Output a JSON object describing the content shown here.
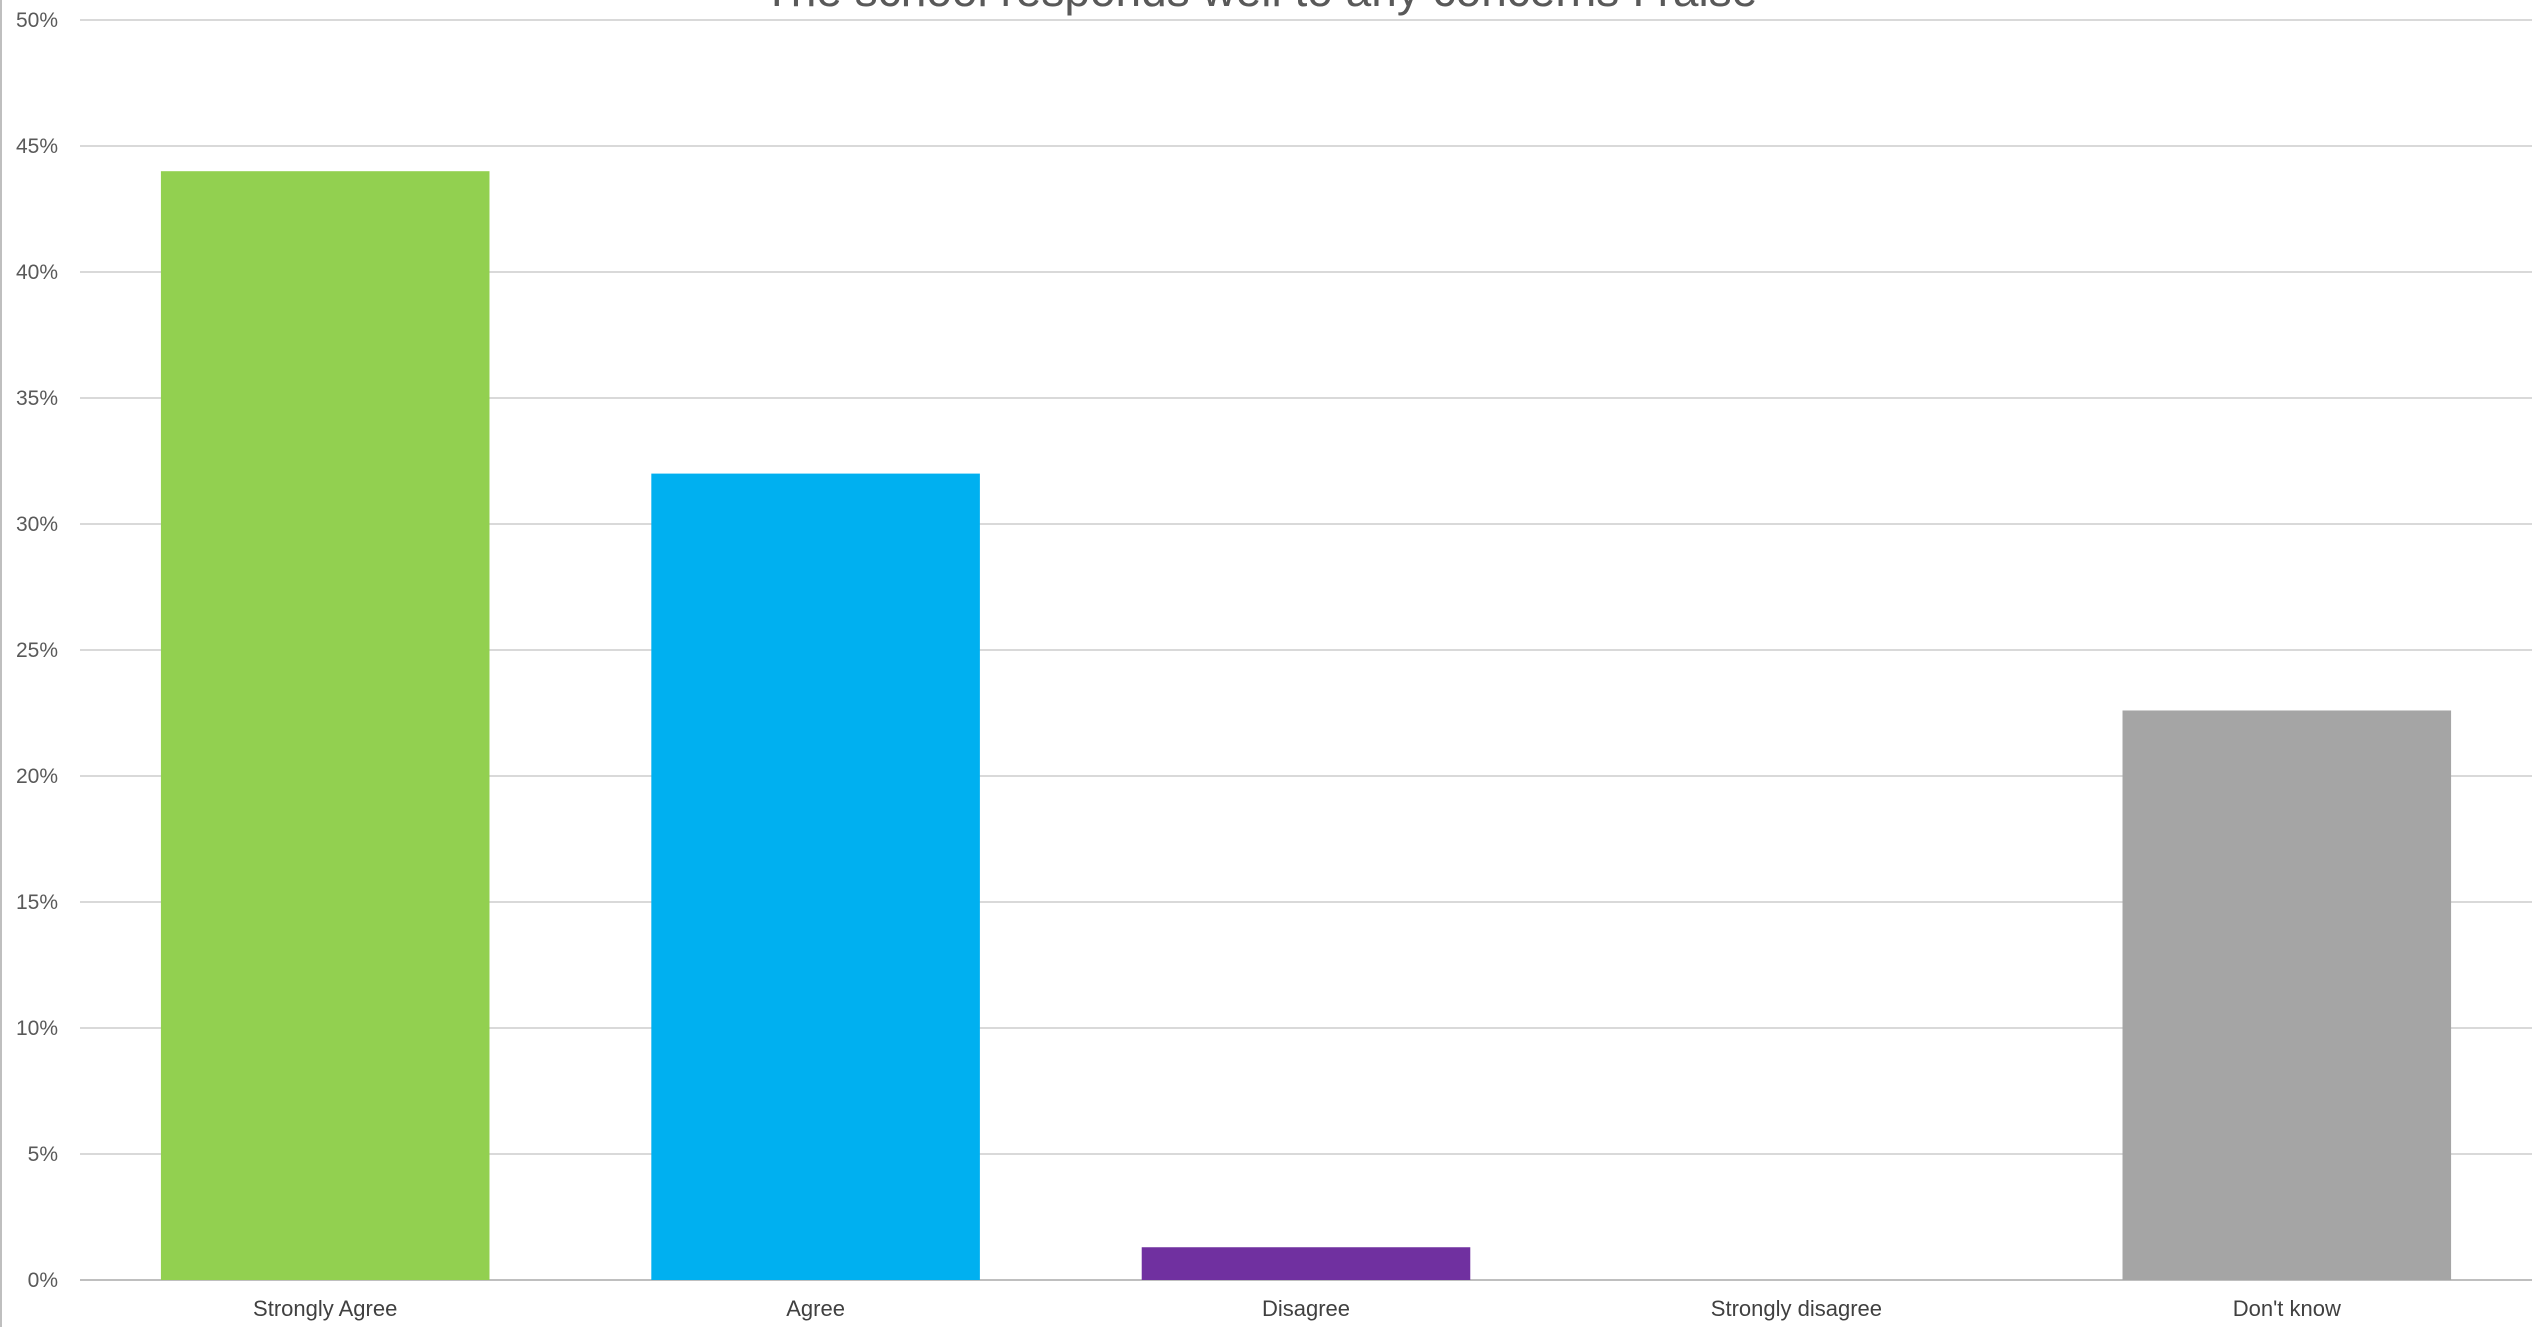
{
  "chart_data": {
    "type": "bar",
    "title": "The school responds well to any concerns I raise",
    "categories": [
      "Strongly Agree",
      "Agree",
      "Disagree",
      "Strongly disagree",
      "Don't know"
    ],
    "values": [
      44,
      32,
      1.3,
      0,
      22.6
    ],
    "colors": [
      "#92D050",
      "#00B0F0",
      "#7030A0",
      "#A5A5A5",
      "#A5A5A5"
    ],
    "ylim": [
      0,
      50
    ],
    "yticks": [
      "0%",
      "5%",
      "10%",
      "15%",
      "20%",
      "25%",
      "30%",
      "35%",
      "40%",
      "45%",
      "50%"
    ],
    "xlabel": "",
    "ylabel": "",
    "grid": true,
    "gridline_color": "#D9D9D9",
    "axis_line_color": "#BFBFBF"
  }
}
